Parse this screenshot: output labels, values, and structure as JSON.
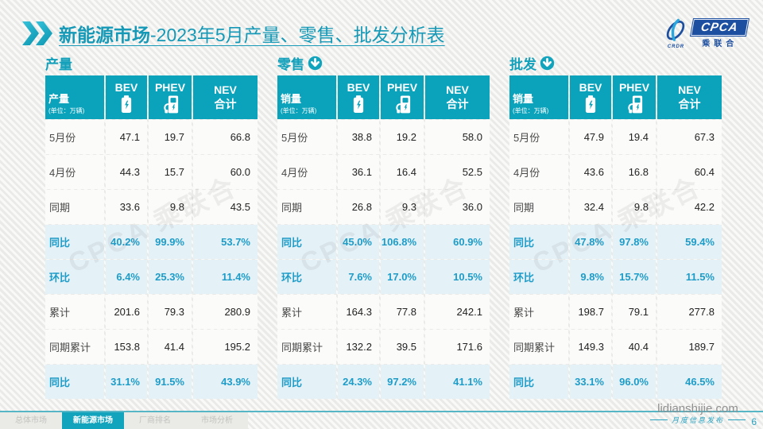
{
  "header": {
    "title_main": "新能源市场",
    "title_rest": "-2023年5月产量、零售、批发分析表",
    "logo": {
      "crdr": "CRDR",
      "cpca": "CPCA",
      "cpca_sub": "乘联合"
    }
  },
  "watermark": "CPCA 乘联合",
  "tables": [
    {
      "section_title": "产量",
      "down_arrow": false,
      "first_col": {
        "title": "产量",
        "unit": "(单位：万辆)"
      },
      "columns": {
        "bev": "BEV",
        "phev": "PHEV",
        "nev_line1": "NEV",
        "nev_line2": "合计"
      },
      "rows": [
        {
          "label": "5月份",
          "bev": "47.1",
          "phev": "19.7",
          "nev": "66.8",
          "highlight": false
        },
        {
          "label": "4月份",
          "bev": "44.3",
          "phev": "15.7",
          "nev": "60.0",
          "highlight": false
        },
        {
          "label": "同期",
          "bev": "33.6",
          "phev": "9.8",
          "nev": "43.5",
          "highlight": false
        },
        {
          "label": "同比",
          "bev": "40.2%",
          "phev": "99.9%",
          "nev": "53.7%",
          "highlight": true
        },
        {
          "label": "环比",
          "bev": "6.4%",
          "phev": "25.3%",
          "nev": "11.4%",
          "highlight": true
        },
        {
          "label": "累计",
          "bev": "201.6",
          "phev": "79.3",
          "nev": "280.9",
          "highlight": false
        },
        {
          "label": "同期累计",
          "bev": "153.8",
          "phev": "41.4",
          "nev": "195.2",
          "highlight": false
        },
        {
          "label": "同比",
          "bev": "31.1%",
          "phev": "91.5%",
          "nev": "43.9%",
          "highlight": true
        }
      ]
    },
    {
      "section_title": "零售",
      "down_arrow": true,
      "first_col": {
        "title": "销量",
        "unit": "(单位：万辆)"
      },
      "columns": {
        "bev": "BEV",
        "phev": "PHEV",
        "nev_line1": "NEV",
        "nev_line2": "合计"
      },
      "rows": [
        {
          "label": "5月份",
          "bev": "38.8",
          "phev": "19.2",
          "nev": "58.0",
          "highlight": false
        },
        {
          "label": "4月份",
          "bev": "36.1",
          "phev": "16.4",
          "nev": "52.5",
          "highlight": false
        },
        {
          "label": "同期",
          "bev": "26.8",
          "phev": "9.3",
          "nev": "36.0",
          "highlight": false
        },
        {
          "label": "同比",
          "bev": "45.0%",
          "phev": "106.8%",
          "nev": "60.9%",
          "highlight": true
        },
        {
          "label": "环比",
          "bev": "7.6%",
          "phev": "17.0%",
          "nev": "10.5%",
          "highlight": true
        },
        {
          "label": "累计",
          "bev": "164.3",
          "phev": "77.8",
          "nev": "242.1",
          "highlight": false
        },
        {
          "label": "同期累计",
          "bev": "132.2",
          "phev": "39.5",
          "nev": "171.6",
          "highlight": false
        },
        {
          "label": "同比",
          "bev": "24.3%",
          "phev": "97.2%",
          "nev": "41.1%",
          "highlight": true
        }
      ]
    },
    {
      "section_title": "批发",
      "down_arrow": true,
      "first_col": {
        "title": "销量",
        "unit": "(单位：万辆)"
      },
      "columns": {
        "bev": "BEV",
        "phev": "PHEV",
        "nev_line1": "NEV",
        "nev_line2": "合计"
      },
      "rows": [
        {
          "label": "5月份",
          "bev": "47.9",
          "phev": "19.4",
          "nev": "67.3",
          "highlight": false
        },
        {
          "label": "4月份",
          "bev": "43.6",
          "phev": "16.8",
          "nev": "60.4",
          "highlight": false
        },
        {
          "label": "同期",
          "bev": "32.4",
          "phev": "9.8",
          "nev": "42.2",
          "highlight": false
        },
        {
          "label": "同比",
          "bev": "47.8%",
          "phev": "97.8%",
          "nev": "59.4%",
          "highlight": true
        },
        {
          "label": "环比",
          "bev": "9.8%",
          "phev": "15.7%",
          "nev": "11.5%",
          "highlight": true
        },
        {
          "label": "累计",
          "bev": "198.7",
          "phev": "79.1",
          "nev": "277.8",
          "highlight": false
        },
        {
          "label": "同期累计",
          "bev": "149.3",
          "phev": "40.4",
          "nev": "189.7",
          "highlight": false
        },
        {
          "label": "同比",
          "bev": "33.1%",
          "phev": "96.0%",
          "nev": "46.5%",
          "highlight": true
        }
      ]
    }
  ],
  "footer": {
    "tabs": [
      {
        "label": "总体市场",
        "active": false
      },
      {
        "label": "新能源市场",
        "active": true
      },
      {
        "label": "厂商排名",
        "active": false
      },
      {
        "label": "市场分析",
        "active": false
      }
    ],
    "site": "lidianshijie.com",
    "site_sub": "月度信息发布",
    "page": "6"
  },
  "colors": {
    "accent_teal": "#0aa3bb",
    "title_teal": "#1599b6",
    "highlight_text": "#1e9cc8",
    "highlight_bg": "#e4f1f7",
    "logo_blue": "#1d4fa0"
  }
}
